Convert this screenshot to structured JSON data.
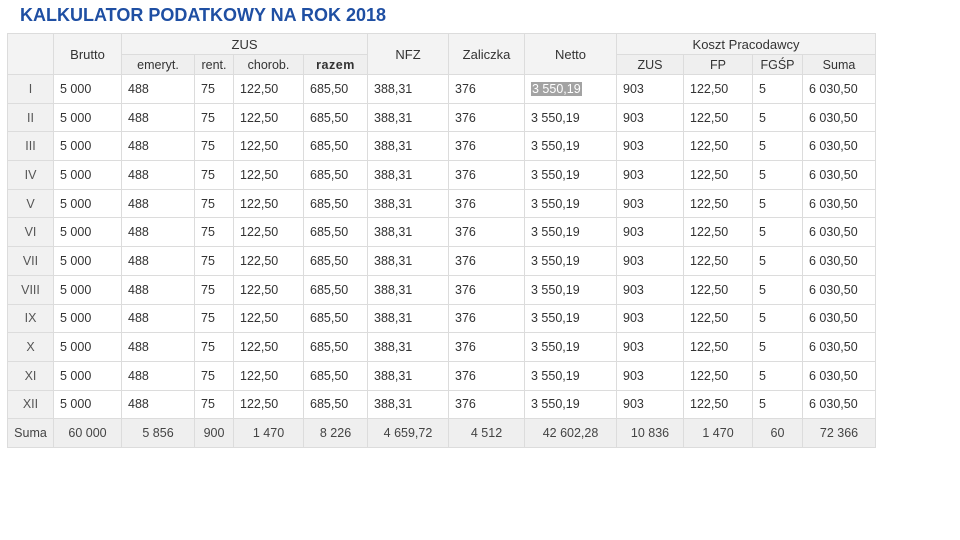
{
  "title": "KALKULATOR PODATKOWY NA ROK 2018",
  "headers": {
    "brutto": "Brutto",
    "zus": "ZUS",
    "zus_sub": [
      "emeryt.",
      "rent.",
      "chorob.",
      "razem"
    ],
    "nfz": "NFZ",
    "zaliczka": "Zaliczka",
    "netto": "Netto",
    "koszt": "Koszt Pracodawcy",
    "koszt_sub": [
      "ZUS",
      "FP",
      "FGŚP",
      "Suma"
    ]
  },
  "rows": [
    {
      "month": "I",
      "cells": [
        "5 000",
        "488",
        "75",
        "122,50",
        "685,50",
        "388,31",
        "376",
        "3 550,19",
        "903",
        "122,50",
        "5",
        "6 030,50"
      ]
    },
    {
      "month": "II",
      "cells": [
        "5 000",
        "488",
        "75",
        "122,50",
        "685,50",
        "388,31",
        "376",
        "3 550,19",
        "903",
        "122,50",
        "5",
        "6 030,50"
      ]
    },
    {
      "month": "III",
      "cells": [
        "5 000",
        "488",
        "75",
        "122,50",
        "685,50",
        "388,31",
        "376",
        "3 550,19",
        "903",
        "122,50",
        "5",
        "6 030,50"
      ]
    },
    {
      "month": "IV",
      "cells": [
        "5 000",
        "488",
        "75",
        "122,50",
        "685,50",
        "388,31",
        "376",
        "3 550,19",
        "903",
        "122,50",
        "5",
        "6 030,50"
      ]
    },
    {
      "month": "V",
      "cells": [
        "5 000",
        "488",
        "75",
        "122,50",
        "685,50",
        "388,31",
        "376",
        "3 550,19",
        "903",
        "122,50",
        "5",
        "6 030,50"
      ]
    },
    {
      "month": "VI",
      "cells": [
        "5 000",
        "488",
        "75",
        "122,50",
        "685,50",
        "388,31",
        "376",
        "3 550,19",
        "903",
        "122,50",
        "5",
        "6 030,50"
      ]
    },
    {
      "month": "VII",
      "cells": [
        "5 000",
        "488",
        "75",
        "122,50",
        "685,50",
        "388,31",
        "376",
        "3 550,19",
        "903",
        "122,50",
        "5",
        "6 030,50"
      ]
    },
    {
      "month": "VIII",
      "cells": [
        "5 000",
        "488",
        "75",
        "122,50",
        "685,50",
        "388,31",
        "376",
        "3 550,19",
        "903",
        "122,50",
        "5",
        "6 030,50"
      ]
    },
    {
      "month": "IX",
      "cells": [
        "5 000",
        "488",
        "75",
        "122,50",
        "685,50",
        "388,31",
        "376",
        "3 550,19",
        "903",
        "122,50",
        "5",
        "6 030,50"
      ]
    },
    {
      "month": "X",
      "cells": [
        "5 000",
        "488",
        "75",
        "122,50",
        "685,50",
        "388,31",
        "376",
        "3 550,19",
        "903",
        "122,50",
        "5",
        "6 030,50"
      ]
    },
    {
      "month": "XI",
      "cells": [
        "5 000",
        "488",
        "75",
        "122,50",
        "685,50",
        "388,31",
        "376",
        "3 550,19",
        "903",
        "122,50",
        "5",
        "6 030,50"
      ]
    },
    {
      "month": "XII",
      "cells": [
        "5 000",
        "488",
        "75",
        "122,50",
        "685,50",
        "388,31",
        "376",
        "3 550,19",
        "903",
        "122,50",
        "5",
        "6 030,50"
      ]
    }
  ],
  "sum": {
    "label": "Suma",
    "cells": [
      "60 000",
      "5 856",
      "900",
      "1 470",
      "8 226",
      "4 659,72",
      "4 512",
      "42 602,28",
      "10 836",
      "1 470",
      "60",
      "72 366"
    ]
  },
  "selection": {
    "row_month": "I",
    "column": "Netto",
    "text": "3 550,19"
  },
  "colors": {
    "title": "#1f4fa3",
    "header_bg": "#f3f3f3",
    "border": "#dcdcdc",
    "selection_bg": "#a3a3a3"
  }
}
